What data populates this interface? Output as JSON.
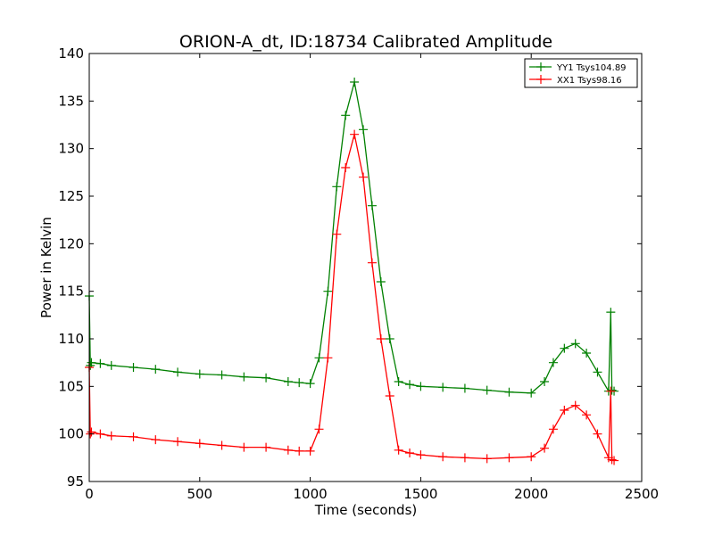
{
  "chart_data": {
    "type": "line",
    "title": "ORION-A_dt, ID:18734 Calibrated Amplitude",
    "xlabel": "Time (seconds)",
    "ylabel": "Power in Kelvin",
    "xlim": [
      0,
      2500
    ],
    "ylim": [
      95,
      140
    ],
    "xticks": [
      0,
      500,
      1000,
      1500,
      2000,
      2500
    ],
    "yticks": [
      95,
      100,
      105,
      110,
      115,
      120,
      125,
      130,
      135,
      140
    ],
    "xtick_labels": [
      "0",
      "500",
      "1000",
      "1500",
      "2000",
      "2500"
    ],
    "ytick_labels": [
      "95",
      "100",
      "105",
      "110",
      "115",
      "120",
      "125",
      "130",
      "135",
      "140"
    ],
    "grid": false,
    "legend_position": "top-right",
    "marker": "plus",
    "series": [
      {
        "name": "YY1 Tsys104.89",
        "color": "#008000",
        "x": [
          0,
          5,
          10,
          50,
          100,
          200,
          300,
          400,
          500,
          600,
          700,
          800,
          900,
          950,
          1000,
          1040,
          1080,
          1120,
          1160,
          1200,
          1240,
          1280,
          1320,
          1360,
          1400,
          1450,
          1500,
          1600,
          1700,
          1800,
          1900,
          2000,
          2060,
          2100,
          2150,
          2200,
          2250,
          2300,
          2350,
          2360,
          2365,
          2375
        ],
        "values": [
          114.5,
          107.2,
          107.5,
          107.4,
          107.2,
          107.0,
          106.8,
          106.5,
          106.3,
          106.2,
          106.0,
          105.9,
          105.5,
          105.4,
          105.3,
          108.0,
          115.0,
          126.0,
          133.5,
          137.0,
          132.0,
          124.0,
          116.0,
          110.0,
          105.5,
          105.2,
          105.0,
          104.9,
          104.8,
          104.6,
          104.4,
          104.3,
          105.5,
          107.5,
          109.0,
          109.5,
          108.5,
          106.5,
          104.5,
          112.8,
          104.6,
          104.5
        ]
      },
      {
        "name": "XX1 Tsys98.16",
        "color": "#ff0000",
        "x": [
          0,
          5,
          10,
          50,
          100,
          200,
          300,
          400,
          500,
          600,
          700,
          800,
          900,
          950,
          1000,
          1040,
          1080,
          1120,
          1160,
          1200,
          1240,
          1280,
          1320,
          1360,
          1400,
          1450,
          1500,
          1600,
          1700,
          1800,
          1900,
          2000,
          2060,
          2100,
          2150,
          2200,
          2250,
          2300,
          2350,
          2360,
          2365,
          2375
        ],
        "values": [
          107.0,
          100.0,
          100.2,
          100.0,
          99.8,
          99.7,
          99.4,
          99.2,
          99.0,
          98.8,
          98.6,
          98.6,
          98.3,
          98.2,
          98.2,
          100.5,
          108.0,
          121.0,
          128.0,
          131.5,
          127.0,
          118.0,
          110.0,
          104.0,
          98.3,
          98.0,
          97.8,
          97.6,
          97.5,
          97.4,
          97.5,
          97.6,
          98.5,
          100.5,
          102.5,
          103.0,
          102.0,
          100.0,
          97.5,
          104.5,
          97.3,
          97.2
        ]
      }
    ]
  }
}
